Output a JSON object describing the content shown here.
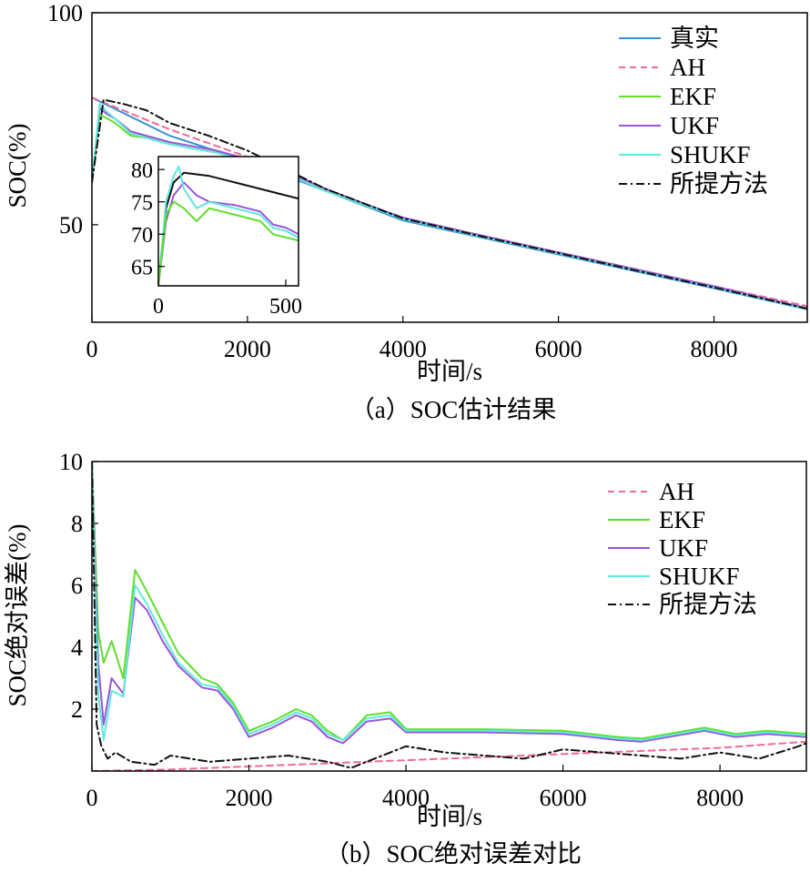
{
  "colors": {
    "true": "#3a8fd6",
    "ah": "#f06b93",
    "ekf": "#5ee02a",
    "ukf": "#9a55d8",
    "shukf": "#5fe8dc",
    "proposed": "#111111"
  },
  "chart_data": [
    {
      "id": "a",
      "type": "line",
      "caption": "（a）SOC估计结果",
      "xlabel": "时间/s",
      "ylabel": "SOC(%)",
      "xlim": [
        0,
        9200
      ],
      "ylim": [
        27,
        100
      ],
      "xticks": [
        0,
        2000,
        4000,
        6000,
        8000
      ],
      "yticks": [
        50,
        100
      ],
      "series": [
        {
          "key": "true",
          "name": "真实",
          "style": "solid",
          "x": [
            0,
            1000,
            2000,
            3000,
            4000,
            5000,
            6000,
            7000,
            8000,
            9200
          ],
          "y": [
            80,
            71,
            65,
            58,
            51,
            47,
            43,
            39,
            35,
            30
          ]
        },
        {
          "key": "ah",
          "name": "AH",
          "style": "dashed",
          "x": [
            0,
            1000,
            2000,
            3000,
            4000,
            5000,
            6000,
            7000,
            8000,
            9200
          ],
          "y": [
            80,
            72.5,
            66,
            58.5,
            51.5,
            47.5,
            43.5,
            39.5,
            35.5,
            30.8
          ]
        },
        {
          "key": "ekf",
          "name": "EKF",
          "style": "solid",
          "x": [
            0,
            100,
            200,
            300,
            500,
            700,
            1000,
            1300,
            1600,
            2000,
            2500,
            3000,
            3600,
            4000,
            5000,
            6000,
            7000,
            8000,
            9200
          ],
          "y": [
            60,
            76,
            75,
            74,
            71,
            70.5,
            69,
            68,
            67,
            65,
            62,
            58,
            54,
            51.5,
            47.3,
            43.3,
            39.3,
            35.3,
            30.2
          ]
        },
        {
          "key": "ukf",
          "name": "UKF",
          "style": "solid",
          "x": [
            0,
            100,
            200,
            300,
            500,
            700,
            1000,
            1300,
            1600,
            2000,
            2500,
            3000,
            3600,
            4000,
            5000,
            6000,
            7000,
            8000,
            9200
          ],
          "y": [
            60,
            77.5,
            76,
            75,
            72,
            71,
            69.5,
            68.5,
            67.5,
            65.5,
            62.5,
            58.5,
            54.3,
            51.7,
            47.5,
            43.5,
            39.5,
            35.5,
            30.3
          ]
        },
        {
          "key": "shukf",
          "name": "SHUKF",
          "style": "solid",
          "x": [
            0,
            100,
            200,
            300,
            500,
            700,
            1000,
            1300,
            1600,
            2000,
            2500,
            3000,
            3600,
            4000,
            5000,
            6000,
            7000,
            8000,
            9200
          ],
          "y": [
            60,
            78.5,
            76.5,
            75,
            71.5,
            70.5,
            69,
            68,
            67,
            65,
            62,
            58,
            54,
            51.4,
            47.2,
            43.2,
            39.2,
            35.2,
            30
          ]
        },
        {
          "key": "proposed",
          "name": "所提方法",
          "style": "dashdot",
          "x": [
            0,
            150,
            400,
            700,
            1000,
            1500,
            2000,
            2500,
            3000,
            3500,
            4000,
            5000,
            6000,
            7000,
            8000,
            9200
          ],
          "y": [
            60,
            79.5,
            78.5,
            77,
            74,
            71,
            67.5,
            63,
            58.5,
            55,
            51.5,
            47.3,
            43.3,
            39.2,
            35.2,
            30.2
          ]
        }
      ],
      "inset": {
        "xlim": [
          0,
          550
        ],
        "ylim": [
          62,
          82
        ],
        "xticks": [
          0,
          500
        ],
        "yticks": [
          65,
          70,
          75,
          80
        ],
        "series": [
          {
            "key": "proposed",
            "x": [
              0,
              30,
              60,
              100,
              200,
              300,
              400,
              500,
              550
            ],
            "y": [
              62,
              74,
              78,
              79.5,
              79,
              78,
              77,
              76,
              75.5
            ]
          },
          {
            "key": "ukf",
            "x": [
              0,
              30,
              60,
              100,
              150,
              200,
              300,
              400,
              450,
              500,
              550
            ],
            "y": [
              62,
              72,
              76,
              78,
              76,
              75,
              74.5,
              73.5,
              71.5,
              71,
              70
            ]
          },
          {
            "key": "shukf",
            "x": [
              0,
              30,
              60,
              80,
              100,
              150,
              200,
              300,
              400,
              450,
              500,
              550
            ],
            "y": [
              62,
              75,
              79,
              80.5,
              77,
              74,
              75,
              74,
              73,
              71,
              70.5,
              69.5
            ]
          },
          {
            "key": "ekf",
            "x": [
              0,
              30,
              60,
              100,
              150,
              200,
              300,
              400,
              450,
              500,
              550
            ],
            "y": [
              62,
              73,
              75,
              74,
              72,
              74,
              73,
              72,
              70,
              69.5,
              69
            ]
          }
        ]
      }
    },
    {
      "id": "b",
      "type": "line",
      "caption": "（b）SOC绝对误差对比",
      "xlabel": "时间/s",
      "ylabel": "SOC绝对误差(%)",
      "xlim": [
        0,
        9100
      ],
      "ylim": [
        0,
        10
      ],
      "xticks": [
        0,
        2000,
        4000,
        6000,
        8000
      ],
      "yticks": [
        2,
        4,
        6,
        8,
        10
      ],
      "series": [
        {
          "key": "ah",
          "name": "AH",
          "style": "dashed",
          "x": [
            0,
            1000,
            2000,
            3000,
            4000,
            5000,
            6000,
            7000,
            8000,
            9100
          ],
          "y": [
            0,
            0.05,
            0.15,
            0.25,
            0.35,
            0.45,
            0.55,
            0.65,
            0.75,
            0.95
          ]
        },
        {
          "key": "ekf",
          "name": "EKF",
          "style": "solid",
          "x": [
            0,
            80,
            150,
            250,
            400,
            550,
            700,
            900,
            1100,
            1400,
            1600,
            1800,
            2000,
            2300,
            2600,
            2800,
            3000,
            3200,
            3500,
            3800,
            4000,
            5000,
            6000,
            6700,
            7000,
            7800,
            8200,
            8600,
            9100
          ],
          "y": [
            10,
            4.5,
            3.5,
            4.2,
            3.0,
            6.5,
            5.8,
            4.8,
            3.8,
            3.0,
            2.8,
            2.2,
            1.3,
            1.6,
            2.0,
            1.8,
            1.3,
            1.0,
            1.8,
            1.9,
            1.35,
            1.35,
            1.3,
            1.1,
            1.05,
            1.4,
            1.2,
            1.3,
            1.2
          ]
        },
        {
          "key": "ukf",
          "name": "UKF",
          "style": "solid",
          "x": [
            0,
            80,
            150,
            250,
            400,
            550,
            700,
            900,
            1100,
            1400,
            1600,
            1800,
            2000,
            2300,
            2600,
            2800,
            3000,
            3200,
            3500,
            3800,
            4000,
            5000,
            6000,
            6700,
            7000,
            7800,
            8200,
            8600,
            9100
          ],
          "y": [
            10,
            3.5,
            1.5,
            3.0,
            2.5,
            5.6,
            5.2,
            4.2,
            3.4,
            2.7,
            2.6,
            2.0,
            1.1,
            1.4,
            1.8,
            1.6,
            1.1,
            0.9,
            1.6,
            1.7,
            1.25,
            1.25,
            1.2,
            1.0,
            0.95,
            1.3,
            1.1,
            1.2,
            1.1
          ]
        },
        {
          "key": "shukf",
          "name": "SHUKF",
          "style": "solid",
          "x": [
            0,
            80,
            150,
            250,
            400,
            550,
            700,
            900,
            1100,
            1400,
            1600,
            1800,
            2000,
            2300,
            2600,
            2800,
            3000,
            3200,
            3500,
            3800,
            4000,
            5000,
            6000,
            6700,
            7000,
            7800,
            8200,
            8600,
            9100
          ],
          "y": [
            10,
            2.5,
            1.0,
            2.6,
            2.4,
            6.0,
            5.4,
            4.4,
            3.5,
            2.8,
            2.7,
            2.1,
            1.2,
            1.5,
            1.9,
            1.7,
            1.2,
            1.0,
            1.7,
            1.8,
            1.3,
            1.3,
            1.25,
            1.05,
            1.0,
            1.35,
            1.15,
            1.25,
            1.15
          ]
        },
        {
          "key": "proposed",
          "name": "所提方法",
          "style": "dashdot",
          "x": [
            0,
            60,
            120,
            200,
            300,
            500,
            800,
            1000,
            1500,
            2000,
            2500,
            3000,
            3300,
            3600,
            4000,
            4500,
            5000,
            5500,
            6000,
            6500,
            7000,
            7500,
            8000,
            8500,
            9000,
            9100
          ],
          "y": [
            10,
            1.5,
            0.8,
            0.4,
            0.6,
            0.3,
            0.2,
            0.5,
            0.3,
            0.4,
            0.5,
            0.3,
            0.1,
            0.4,
            0.8,
            0.6,
            0.5,
            0.4,
            0.7,
            0.6,
            0.5,
            0.4,
            0.6,
            0.4,
            0.8,
            0.9
          ]
        }
      ]
    }
  ]
}
